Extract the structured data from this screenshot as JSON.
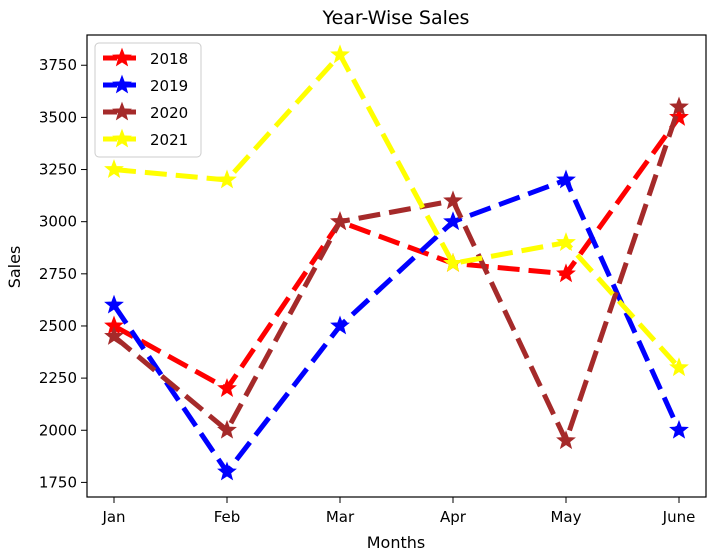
{
  "chart_data": {
    "type": "line",
    "title": "Year-Wise Sales",
    "xlabel": "Months",
    "ylabel": "Sales",
    "categories": [
      "Jan",
      "Feb",
      "Mar",
      "Apr",
      "May",
      "June"
    ],
    "ylim": [
      1680,
      3895
    ],
    "yticks": [
      1750,
      2000,
      2250,
      2500,
      2750,
      3000,
      3250,
      3500,
      3750
    ],
    "grid": false,
    "legend_position": "upper-left",
    "marker": "star",
    "line_style": "dashed",
    "series": [
      {
        "name": "2018",
        "color": "#ff0000",
        "values": [
          2500,
          2200,
          3000,
          2800,
          2750,
          3500
        ]
      },
      {
        "name": "2019",
        "color": "#0000ff",
        "values": [
          2600,
          1800,
          2500,
          3000,
          3200,
          2000
        ]
      },
      {
        "name": "2020",
        "color": "#a52a2a",
        "values": [
          2450,
          2000,
          3000,
          3100,
          1950,
          3550
        ]
      },
      {
        "name": "2021",
        "color": "#ffff00",
        "values": [
          3250,
          3200,
          3800,
          2800,
          2900,
          2300
        ]
      }
    ]
  }
}
